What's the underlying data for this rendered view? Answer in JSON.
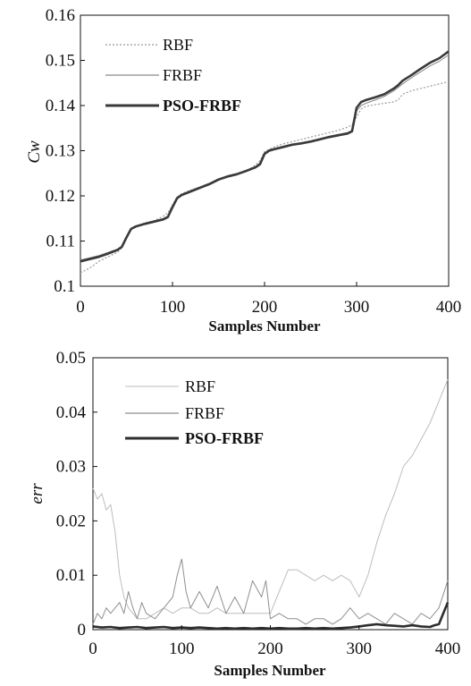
{
  "chart_data": [
    {
      "type": "line",
      "xlabel": "Samples Number",
      "ylabel": "Cw",
      "xlim": [
        0,
        400
      ],
      "ylim": [
        0.1,
        0.16
      ],
      "xticks": [
        "0",
        "100",
        "200",
        "300",
        "400"
      ],
      "yticks": [
        "0.1",
        "0.11",
        "0.12",
        "0.13",
        "0.14",
        "0.15",
        "0.16"
      ],
      "grid": false,
      "legend_position": "top-left",
      "series": [
        {
          "name": "RBF",
          "style": "dotted",
          "color": "#999999",
          "x": [
            0,
            10,
            20,
            30,
            40,
            45,
            50,
            55,
            60,
            70,
            80,
            90,
            95,
            100,
            105,
            110,
            120,
            130,
            140,
            150,
            160,
            170,
            180,
            190,
            195,
            200,
            205,
            210,
            220,
            230,
            240,
            250,
            260,
            270,
            280,
            290,
            295,
            300,
            305,
            310,
            320,
            330,
            340,
            345,
            350,
            360,
            370,
            380,
            390,
            400
          ],
          "y": [
            0.103,
            0.104,
            0.1055,
            0.1065,
            0.1075,
            0.1085,
            0.1105,
            0.1125,
            0.1133,
            0.114,
            0.1145,
            0.1155,
            0.1162,
            0.118,
            0.1197,
            0.1205,
            0.1213,
            0.122,
            0.1228,
            0.1238,
            0.1243,
            0.1248,
            0.1255,
            0.1268,
            0.1278,
            0.1298,
            0.1303,
            0.1308,
            0.1315,
            0.132,
            0.1325,
            0.133,
            0.1335,
            0.134,
            0.1345,
            0.1352,
            0.1357,
            0.1375,
            0.1392,
            0.1398,
            0.1402,
            0.1405,
            0.1408,
            0.1412,
            0.1425,
            0.1433,
            0.1438,
            0.1443,
            0.1448,
            0.1453
          ]
        },
        {
          "name": "FRBF",
          "style": "solid-thin",
          "color": "#8a8a8a",
          "x": [
            0,
            10,
            20,
            30,
            40,
            45,
            50,
            55,
            60,
            70,
            80,
            90,
            95,
            100,
            105,
            110,
            120,
            130,
            140,
            150,
            160,
            170,
            180,
            190,
            195,
            200,
            205,
            210,
            220,
            230,
            240,
            250,
            260,
            270,
            280,
            290,
            295,
            300,
            305,
            310,
            320,
            330,
            340,
            345,
            350,
            360,
            370,
            380,
            390,
            400
          ],
          "y": [
            0.1058,
            0.1063,
            0.1068,
            0.1075,
            0.1082,
            0.1088,
            0.1108,
            0.1128,
            0.1133,
            0.114,
            0.1145,
            0.115,
            0.1155,
            0.1178,
            0.1195,
            0.1203,
            0.1212,
            0.122,
            0.1228,
            0.1238,
            0.1245,
            0.125,
            0.1257,
            0.1265,
            0.1273,
            0.1295,
            0.1302,
            0.1305,
            0.131,
            0.1315,
            0.1318,
            0.1322,
            0.1327,
            0.1332,
            0.1336,
            0.134,
            0.1345,
            0.1388,
            0.14,
            0.1405,
            0.1412,
            0.142,
            0.1432,
            0.144,
            0.1448,
            0.1462,
            0.1475,
            0.1488,
            0.1498,
            0.1512
          ]
        },
        {
          "name": "PSO-FRBF",
          "style": "solid-thick",
          "color": "#3a3a3a",
          "x": [
            0,
            10,
            20,
            30,
            40,
            45,
            50,
            55,
            60,
            70,
            80,
            90,
            95,
            100,
            105,
            110,
            120,
            130,
            140,
            150,
            160,
            170,
            180,
            190,
            195,
            200,
            205,
            210,
            220,
            230,
            240,
            250,
            260,
            270,
            280,
            290,
            295,
            300,
            305,
            310,
            320,
            330,
            340,
            345,
            350,
            360,
            370,
            380,
            390,
            400
          ],
          "y": [
            0.1055,
            0.106,
            0.1065,
            0.1072,
            0.108,
            0.1087,
            0.1108,
            0.1127,
            0.1132,
            0.1138,
            0.1143,
            0.1148,
            0.1153,
            0.1175,
            0.1195,
            0.1202,
            0.121,
            0.1218,
            0.1226,
            0.1236,
            0.1243,
            0.1248,
            0.1255,
            0.1263,
            0.127,
            0.1293,
            0.13,
            0.1303,
            0.1308,
            0.1313,
            0.1316,
            0.132,
            0.1325,
            0.133,
            0.1334,
            0.1338,
            0.1343,
            0.1395,
            0.1408,
            0.1412,
            0.1418,
            0.1425,
            0.1437,
            0.1445,
            0.1455,
            0.1468,
            0.1482,
            0.1495,
            0.1505,
            0.152
          ]
        }
      ]
    },
    {
      "type": "line",
      "xlabel": "Samples Number",
      "ylabel": "err",
      "xlim": [
        0,
        400
      ],
      "ylim": [
        0,
        0.05
      ],
      "xticks": [
        "0",
        "100",
        "200",
        "300",
        "400"
      ],
      "yticks": [
        "0",
        "0.01",
        "0.02",
        "0.03",
        "0.04",
        "0.05"
      ],
      "grid": false,
      "legend_position": "top-center",
      "series": [
        {
          "name": "RBF",
          "style": "solid-faint",
          "color": "#bdbdbd",
          "x": [
            0,
            5,
            10,
            15,
            20,
            25,
            30,
            35,
            40,
            45,
            50,
            60,
            70,
            80,
            90,
            100,
            110,
            120,
            130,
            140,
            150,
            160,
            170,
            180,
            190,
            200,
            210,
            220,
            230,
            240,
            250,
            260,
            270,
            280,
            290,
            300,
            310,
            320,
            330,
            340,
            350,
            360,
            370,
            380,
            390,
            400
          ],
          "y": [
            0.026,
            0.024,
            0.025,
            0.022,
            0.023,
            0.018,
            0.01,
            0.006,
            0.004,
            0.003,
            0.002,
            0.002,
            0.003,
            0.004,
            0.003,
            0.004,
            0.004,
            0.003,
            0.003,
            0.004,
            0.003,
            0.003,
            0.003,
            0.003,
            0.003,
            0.003,
            0.007,
            0.011,
            0.011,
            0.01,
            0.009,
            0.01,
            0.009,
            0.01,
            0.009,
            0.006,
            0.01,
            0.016,
            0.021,
            0.025,
            0.03,
            0.032,
            0.035,
            0.038,
            0.042,
            0.046
          ]
        },
        {
          "name": "FRBF",
          "style": "solid-thin",
          "color": "#8f8f8f",
          "x": [
            0,
            5,
            10,
            15,
            20,
            25,
            30,
            35,
            40,
            45,
            50,
            55,
            60,
            70,
            80,
            90,
            95,
            100,
            105,
            110,
            120,
            130,
            140,
            150,
            160,
            170,
            180,
            190,
            195,
            200,
            210,
            220,
            230,
            240,
            250,
            260,
            270,
            280,
            290,
            300,
            310,
            320,
            330,
            340,
            350,
            360,
            370,
            380,
            390,
            400
          ],
          "y": [
            0.001,
            0.003,
            0.002,
            0.004,
            0.003,
            0.004,
            0.005,
            0.003,
            0.007,
            0.004,
            0.002,
            0.005,
            0.003,
            0.002,
            0.004,
            0.006,
            0.01,
            0.013,
            0.007,
            0.004,
            0.007,
            0.004,
            0.008,
            0.003,
            0.006,
            0.003,
            0.009,
            0.006,
            0.009,
            0.002,
            0.003,
            0.002,
            0.002,
            0.001,
            0.002,
            0.002,
            0.001,
            0.002,
            0.004,
            0.002,
            0.003,
            0.002,
            0.001,
            0.003,
            0.002,
            0.001,
            0.003,
            0.002,
            0.004,
            0.009
          ]
        },
        {
          "name": "PSO-FRBF",
          "style": "solid-thick",
          "color": "#2e2e2e",
          "x": [
            0,
            10,
            20,
            30,
            40,
            50,
            60,
            70,
            80,
            90,
            100,
            110,
            120,
            130,
            140,
            150,
            160,
            170,
            180,
            190,
            200,
            210,
            220,
            230,
            240,
            250,
            260,
            270,
            280,
            290,
            300,
            310,
            320,
            330,
            340,
            350,
            360,
            370,
            380,
            385,
            390,
            395,
            400
          ],
          "y": [
            0.0006,
            0.0004,
            0.0005,
            0.0003,
            0.0004,
            0.0005,
            0.0003,
            0.0004,
            0.0005,
            0.0003,
            0.0004,
            0.0003,
            0.0004,
            0.0003,
            0.0002,
            0.0003,
            0.0002,
            0.0003,
            0.0002,
            0.0003,
            0.0002,
            0.0003,
            0.0002,
            0.0002,
            0.0003,
            0.0002,
            0.0003,
            0.0002,
            0.0003,
            0.0004,
            0.0006,
            0.0008,
            0.001,
            0.0008,
            0.0007,
            0.0006,
            0.0008,
            0.0006,
            0.0005,
            0.0008,
            0.001,
            0.003,
            0.005
          ]
        }
      ]
    }
  ]
}
